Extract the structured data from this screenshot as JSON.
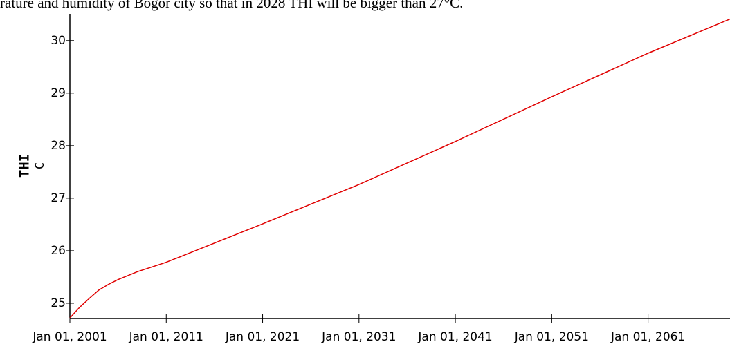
{
  "caption": "rature and humidity of Bogor city so that in 2028 THI will be bigger than 27°C.",
  "chart_data": {
    "type": "line",
    "y_label": "THI",
    "y_unit": "C",
    "x": [
      2001,
      2002,
      2003,
      2004,
      2005,
      2006,
      2008,
      2011,
      2021,
      2031,
      2041,
      2051,
      2061,
      2069.5
    ],
    "series": [
      {
        "name": "THI",
        "color": "#e00000",
        "values": [
          24.72,
          24.92,
          25.09,
          25.25,
          25.36,
          25.45,
          25.6,
          25.78,
          26.51,
          27.26,
          28.08,
          28.93,
          29.76,
          30.41
        ]
      }
    ],
    "xlim": [
      2001,
      2069.5
    ],
    "xticks": [
      {
        "value": 2001,
        "label": "Jan 01, 2001"
      },
      {
        "value": 2011,
        "label": "Jan 01, 2011"
      },
      {
        "value": 2021,
        "label": "Jan 01, 2021"
      },
      {
        "value": 2031,
        "label": "Jan 01, 2031"
      },
      {
        "value": 2041,
        "label": "Jan 01, 2041"
      },
      {
        "value": 2051,
        "label": "Jan 01, 2051"
      },
      {
        "value": 2061,
        "label": "Jan 01, 2061"
      }
    ],
    "ylim": [
      24.71,
      30.51
    ],
    "yticks": [
      25,
      26,
      27,
      28,
      29,
      30
    ]
  }
}
